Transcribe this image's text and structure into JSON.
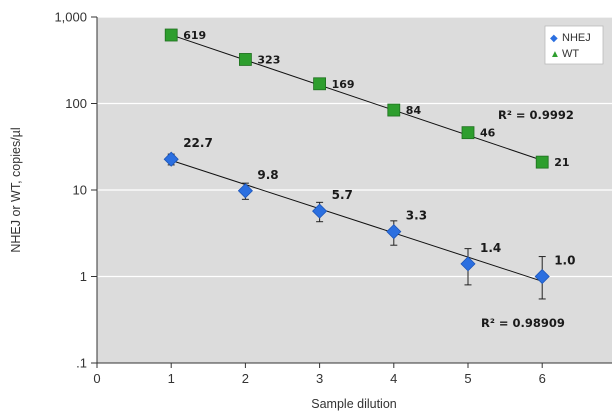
{
  "chart_data": {
    "type": "scatter",
    "xlabel": "Sample dilution",
    "ylabel": "NHEJ or WT, copies/µl",
    "yscale": "log",
    "xlim": [
      0,
      7
    ],
    "ylim": [
      0.1,
      1000
    ],
    "x_ticks": [
      "0",
      "1",
      "2",
      "3",
      "4",
      "5",
      "6",
      "7"
    ],
    "y_ticks": [
      {
        "value": 0.1,
        "label": ".1"
      },
      {
        "value": 1,
        "label": "1"
      },
      {
        "value": 10,
        "label": "10"
      },
      {
        "value": 100,
        "label": "100"
      },
      {
        "value": 1000,
        "label": "1,000"
      }
    ],
    "grid": "horizontal",
    "background": "#dcdcdc",
    "legend_position": "top-right",
    "series": [
      {
        "name": "NHEJ",
        "marker": "diamond",
        "legend_symbol": "◆",
        "color": "#2b6fe0",
        "x": [
          1,
          2,
          3,
          4,
          5,
          6
        ],
        "y": [
          22.7,
          9.8,
          5.7,
          3.3,
          1.4,
          1.0
        ],
        "labels": [
          "22.7",
          "9.8",
          "5.7",
          "3.3",
          "1.4",
          "1.0"
        ],
        "error_low": [
          19.5,
          7.8,
          4.3,
          2.3,
          0.8,
          0.55
        ],
        "error_high": [
          26,
          12,
          7.2,
          4.4,
          2.1,
          1.7
        ],
        "trendline": {
          "x1": 1,
          "y1": 22.0,
          "x2": 6,
          "y2": 0.88
        },
        "r_squared_label": "R² = 0.98909"
      },
      {
        "name": "WT",
        "marker": "square",
        "legend_symbol": "▲",
        "color": "#2e9e2e",
        "x": [
          1,
          2,
          3,
          4,
          5,
          6
        ],
        "y": [
          619,
          323,
          169,
          84,
          46,
          21
        ],
        "labels": [
          "619",
          "323",
          "169",
          "84",
          "46",
          "21"
        ],
        "trendline": {
          "x1": 1,
          "y1": 620,
          "x2": 6,
          "y2": 22
        },
        "r_squared_label": "R² = 0.9992"
      }
    ]
  }
}
